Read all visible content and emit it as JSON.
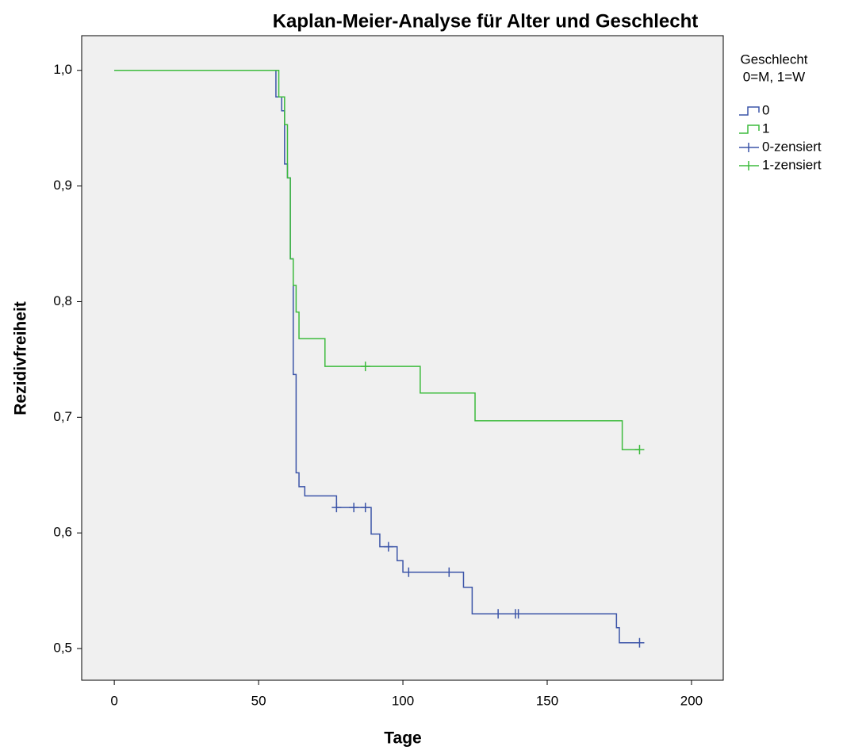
{
  "chart_data": {
    "type": "line",
    "drawstyle": "steps-post",
    "title": "Kaplan-Meier-Analyse für Alter und Geschlecht",
    "x_label": "Tage",
    "y_label": "Rezidivfreiheit",
    "legend_title": [
      "Geschlecht",
      "0=M, 1=W"
    ],
    "legend_position": "right",
    "xlim": [
      -11.3,
      211
    ],
    "ylim": [
      0.4726,
      1.03
    ],
    "xticks": [
      0,
      50,
      100,
      150,
      200
    ],
    "yticks": [
      {
        "value": 0.5,
        "label": "0,5"
      },
      {
        "value": 0.6,
        "label": "0,6"
      },
      {
        "value": 0.7,
        "label": "0,7"
      },
      {
        "value": 0.8,
        "label": "0,8"
      },
      {
        "value": 0.9,
        "label": "0,9"
      },
      {
        "value": 1,
        "label": "1,0"
      }
    ],
    "series": [
      {
        "name": "0",
        "color": "#3c55a8",
        "marker": "step",
        "x": [
          0,
          56,
          58,
          59,
          60,
          61,
          62,
          63,
          64,
          66,
          77,
          89,
          92,
          98,
          100,
          121,
          124,
          174,
          175,
          182
        ],
        "values": [
          1,
          0.977,
          0.965,
          0.919,
          0.907,
          0.837,
          0.737,
          0.652,
          0.64,
          0.632,
          0.622,
          0.599,
          0.588,
          0.576,
          0.566,
          0.553,
          0.53,
          0.518,
          0.505,
          0.505
        ]
      },
      {
        "name": "1",
        "color": "#3dbb3d",
        "marker": "step",
        "x": [
          0,
          57,
          59,
          60,
          61,
          62,
          63,
          64,
          73,
          106,
          125,
          176,
          182
        ],
        "values": [
          1,
          0.977,
          0.953,
          0.907,
          0.837,
          0.814,
          0.791,
          0.768,
          0.744,
          0.721,
          0.697,
          0.672,
          0.672
        ]
      },
      {
        "name": "0-zensiert",
        "color": "#3c55a8",
        "marker": "plus",
        "x": [
          77,
          83,
          87,
          95,
          102,
          116,
          133,
          139,
          140,
          182
        ],
        "values": [
          0.622,
          0.622,
          0.622,
          0.588,
          0.566,
          0.566,
          0.53,
          0.53,
          0.53,
          0.505
        ]
      },
      {
        "name": "1-zensiert",
        "color": "#3dbb3d",
        "marker": "plus",
        "x": [
          87,
          182
        ],
        "values": [
          0.744,
          0.672
        ]
      }
    ]
  }
}
